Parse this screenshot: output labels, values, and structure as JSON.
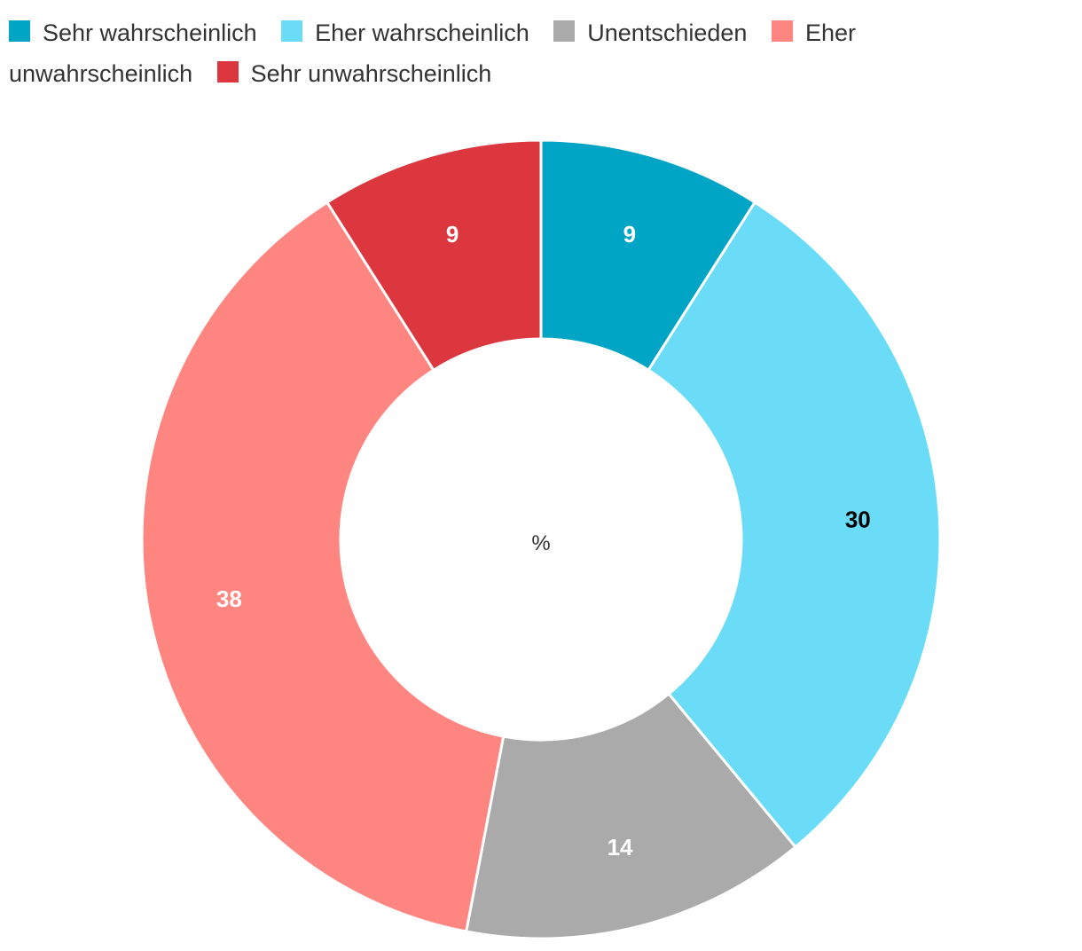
{
  "chart_data": {
    "type": "donut",
    "title": "",
    "center_label": "%",
    "legend_position": "top-left",
    "series": [
      {
        "name": "Sehr wahrscheinlich",
        "value": 9,
        "label": "9",
        "color": "#00a4c4",
        "label_color": "#ffffff"
      },
      {
        "name": "Eher wahrscheinlich",
        "value": 30,
        "label": "30",
        "color": "#6adcf8",
        "label_color": "#000000"
      },
      {
        "name": "Unentschieden",
        "value": 14,
        "label": "14",
        "color": "#aaaaaa",
        "label_color": "#ffffff"
      },
      {
        "name": "Eher unwahrscheinlich",
        "value": 38,
        "label": "38",
        "color": "#ff8580",
        "label_color": "#ffffff"
      },
      {
        "name": "Sehr unwahrscheinlich",
        "value": 9,
        "label": "9",
        "color": "#dc373e",
        "label_color": "#ffffff"
      }
    ]
  }
}
